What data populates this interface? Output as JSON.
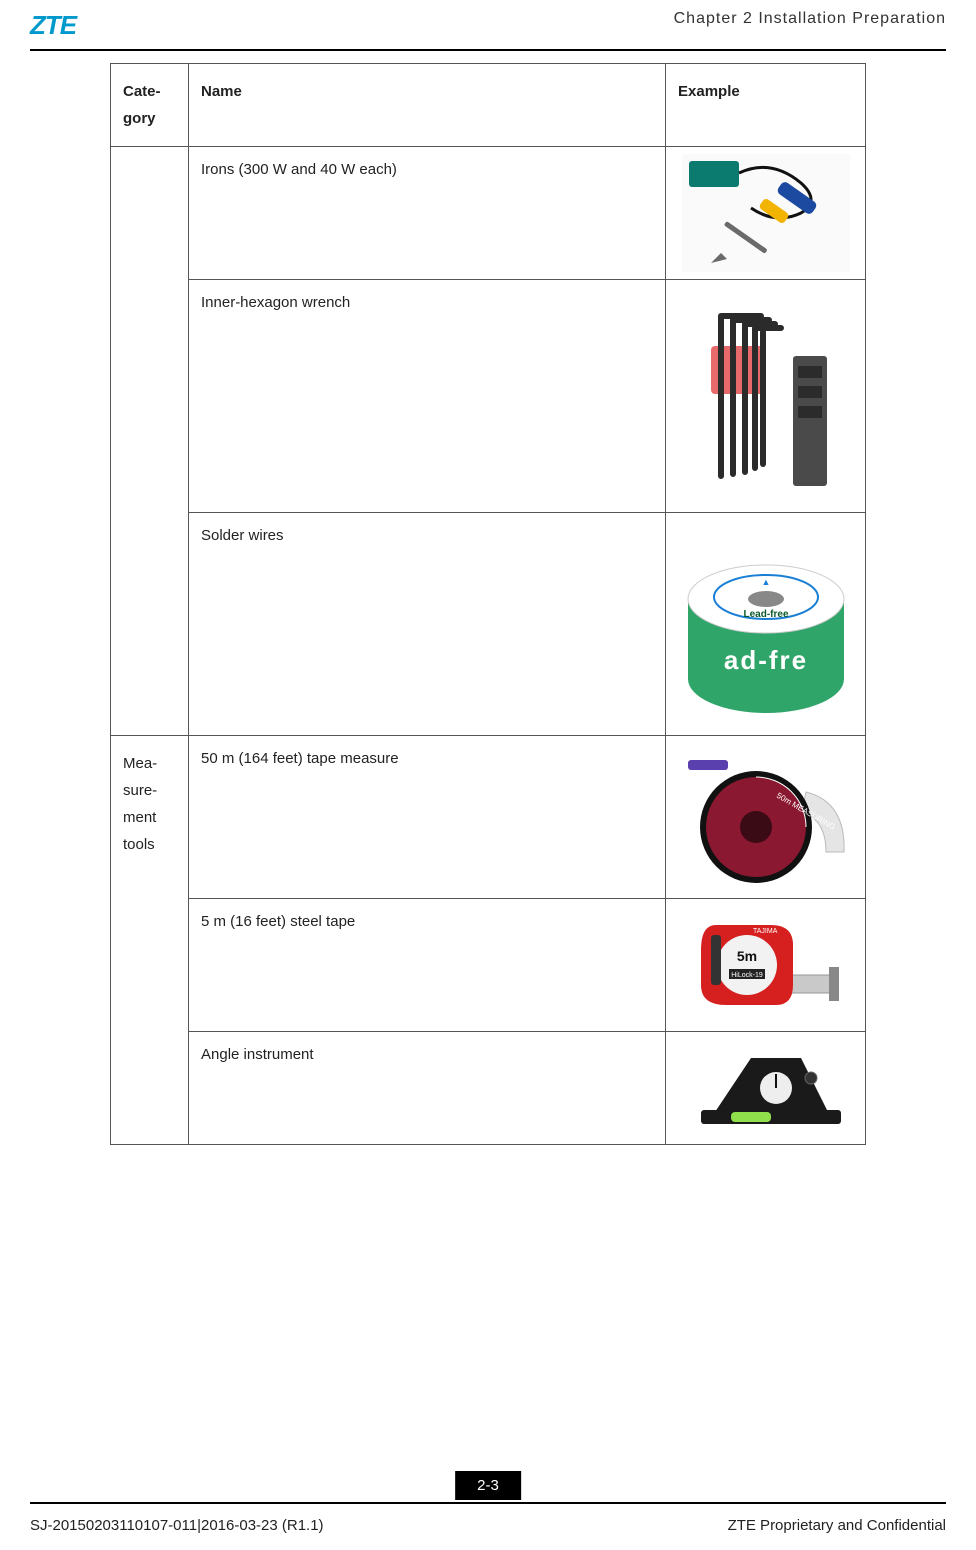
{
  "header": {
    "logo": "ZTE",
    "logo_color": "#0099cc",
    "chapter": "Chapter 2 Installation Preparation"
  },
  "table": {
    "columns": [
      "Cate-\ngory",
      "Name",
      "Example"
    ],
    "groups": [
      {
        "category": "",
        "rows": [
          {
            "name": "Irons (300 W and 40 W each)",
            "image": "soldering-iron"
          },
          {
            "name": "Inner-hexagon wrench",
            "image": "hex-wrench-set"
          },
          {
            "name": "Solder wires",
            "image": "solder-spool"
          }
        ]
      },
      {
        "category": "Mea-\nsure-\nment\ntools",
        "rows": [
          {
            "name": "50 m (164 feet) tape measure",
            "image": "tape-measure-50m"
          },
          {
            "name": "5 m (16 feet) steel tape",
            "image": "steel-tape-5m"
          },
          {
            "name": "Angle instrument",
            "image": "angle-instrument"
          }
        ]
      }
    ]
  },
  "images": {
    "soldering-iron": {
      "bg": "#f5f5f5",
      "colors": {
        "handle1": "#1c4aa0",
        "handle2": "#f2b400",
        "tip": "#6a6a6a",
        "cord": "#111111",
        "box": "#0b7a6f"
      }
    },
    "hex-wrench-set": {
      "colors": {
        "metal": "#2b2b2b",
        "holder": "#e86a6a",
        "block": "#4a4a4a"
      }
    },
    "solder-spool": {
      "colors": {
        "spool_top": "#ffffff",
        "spool_side": "#2fa56a",
        "label_text": "#0a5a2a",
        "spool_core": "#888888"
      },
      "label": "Lead-free"
    },
    "tape-measure-50m": {
      "colors": {
        "case": "#8a1830",
        "rim": "#111111",
        "tape": "#e5e5e5",
        "handle": "#5a3fae"
      }
    },
    "steel-tape-5m": {
      "colors": {
        "body": "#d62020",
        "face": "#f2f2f2",
        "tape": "#c9c9c9",
        "clip": "#333333"
      },
      "label": "5m"
    },
    "angle-instrument": {
      "colors": {
        "body": "#1a1a1a",
        "level": "#8fe04a",
        "dial": "#eeeeee"
      }
    }
  },
  "footer": {
    "page": "2-3",
    "left": "SJ-20150203110107-011|2016-03-23 (R1.1)",
    "right": "ZTE Proprietary and Confidential"
  },
  "style": {
    "border_color": "#555555",
    "text_color": "#222222",
    "font_size_body": 15,
    "font_size_chapter": 16,
    "font_size_footer": 15
  }
}
